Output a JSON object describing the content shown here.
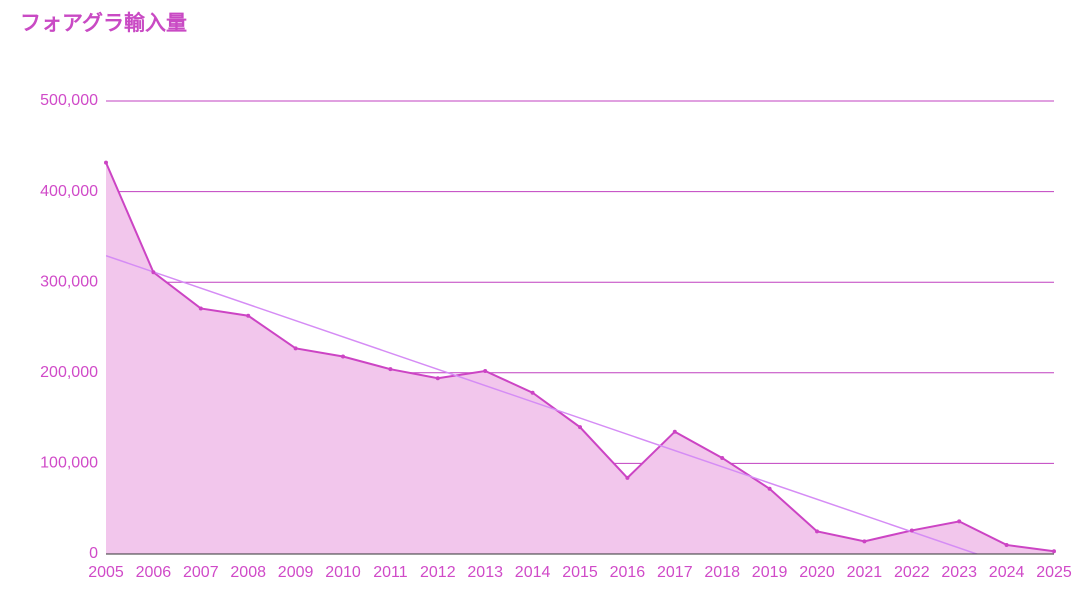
{
  "chart_data": {
    "type": "area",
    "title": "フォアグラ輸入量",
    "x": [
      2005,
      2006,
      2007,
      2008,
      2009,
      2010,
      2011,
      2012,
      2013,
      2014,
      2015,
      2016,
      2017,
      2018,
      2019,
      2020,
      2021,
      2022,
      2023,
      2024,
      2025
    ],
    "series": [
      {
        "color": "#cc44c4",
        "fill": "#f2c6ec",
        "values": [
          432000,
          311000,
          271000,
          263000,
          227000,
          218000,
          204000,
          194000,
          202000,
          178000,
          140000,
          84000,
          135000,
          106000,
          72000,
          25000,
          14000,
          26000,
          36000,
          10000,
          3000
        ]
      }
    ],
    "trendline": true,
    "trendline_color": "#d58cf5",
    "xlim": [
      2005,
      2025
    ],
    "ylim": [
      0,
      500000
    ],
    "yticks": [
      {
        "value": 0,
        "label": "0"
      },
      {
        "value": 100000,
        "label": "100,000"
      },
      {
        "value": 200000,
        "label": "200,000"
      },
      {
        "value": 300000,
        "label": "300,000"
      },
      {
        "value": 400000,
        "label": "400,000"
      },
      {
        "value": 500000,
        "label": "500,000"
      }
    ],
    "grid": true,
    "grid_color": "#c040c0"
  }
}
